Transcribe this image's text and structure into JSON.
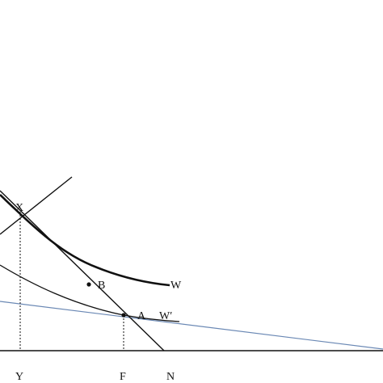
{
  "diagram": {
    "colors": {
      "ink": "#111111",
      "blue_line": "#6a88b4"
    },
    "point_labels": {
      "X": "X",
      "B": "B",
      "A": "A"
    },
    "curve_labels": {
      "W": "W",
      "W_prime": "W′"
    },
    "axis_labels": {
      "Y": "Y",
      "F": "F",
      "N": "N"
    }
  }
}
